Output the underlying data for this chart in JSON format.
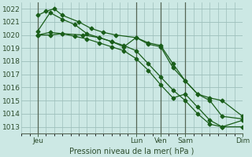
{
  "title": "Pression niveau de la mer( hPa )",
  "bg_color": "#cce8e4",
  "grid_major_color": "#9dbfbb",
  "grid_minor_color": "#b8d8d4",
  "line_color": "#1a5e1a",
  "sep_color": "#556655",
  "xlim": [
    0,
    108
  ],
  "ylim": [
    1012.5,
    1022.5
  ],
  "yticks": [
    1013,
    1014,
    1015,
    1016,
    1017,
    1018,
    1019,
    1020,
    1021,
    1022
  ],
  "day_lines": [
    8,
    56,
    68,
    80
  ],
  "xtick_positions": [
    8,
    56,
    68,
    80,
    108
  ],
  "xtick_labels": [
    "Jeu",
    "Lun",
    "Ven",
    "Sam",
    "Dim"
  ],
  "series1": {
    "x": [
      8,
      14,
      20,
      26,
      32,
      38,
      44,
      50,
      56,
      62,
      68,
      74,
      80,
      86,
      92,
      98,
      108
    ],
    "y": [
      1020.3,
      1021.7,
      1021.2,
      1020.8,
      1020.1,
      1019.8,
      1019.5,
      1019.1,
      1019.8,
      1019.3,
      1019.1,
      1017.5,
      1016.5,
      1015.5,
      1015.2,
      1015.0,
      1013.8
    ]
  },
  "series2": {
    "x": [
      8,
      12,
      16,
      20,
      28,
      34,
      40,
      46,
      56,
      62,
      68,
      74,
      80,
      86,
      92,
      98,
      108
    ],
    "y": [
      1021.5,
      1021.8,
      1022.0,
      1021.5,
      1021.0,
      1020.5,
      1020.2,
      1020.0,
      1019.8,
      1019.4,
      1019.2,
      1017.8,
      1016.5,
      1015.5,
      1015.0,
      1013.8,
      1013.6
    ]
  },
  "series3": {
    "x": [
      8,
      14,
      20,
      30,
      38,
      44,
      50,
      56,
      62,
      68,
      74,
      80,
      86,
      92,
      98,
      108
    ],
    "y": [
      1020.0,
      1020.2,
      1020.1,
      1020.0,
      1019.8,
      1019.5,
      1019.2,
      1018.8,
      1017.8,
      1016.8,
      1015.8,
      1015.0,
      1014.0,
      1013.2,
      1013.0,
      1013.0
    ]
  },
  "series4": {
    "x": [
      8,
      14,
      20,
      26,
      32,
      38,
      44,
      50,
      56,
      62,
      68,
      74,
      80,
      86,
      92,
      98,
      108
    ],
    "y": [
      1020.0,
      1020.0,
      1020.1,
      1019.9,
      1019.7,
      1019.4,
      1019.1,
      1018.8,
      1018.2,
      1017.3,
      1016.2,
      1015.2,
      1015.5,
      1014.5,
      1013.5,
      1013.0,
      1013.5
    ]
  }
}
